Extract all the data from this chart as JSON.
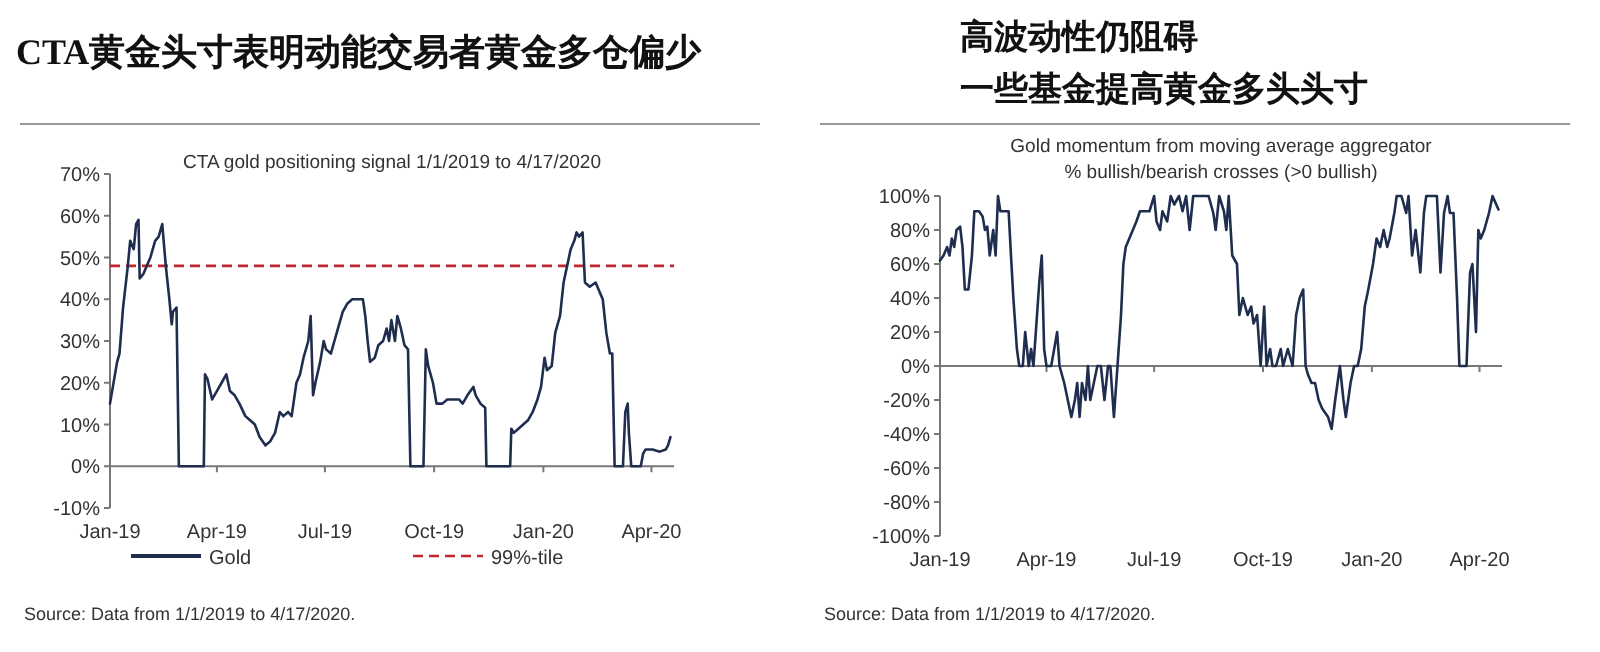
{
  "chart_data": [
    {
      "type": "line",
      "title": "CTA黄金头寸表明动能交易者黄金多仓偏少",
      "subtitle": "CTA gold positioning signal 1/1/2019 to 4/17/2020",
      "legend": "bottom",
      "line_style": "solid",
      "xlim": [
        "2019-01-01",
        "2020-04-20"
      ],
      "ylim": [
        -10,
        70
      ],
      "xticks": [
        {
          "value": "2019-01-01",
          "label": "Jan-19"
        },
        {
          "value": "2019-04-01",
          "label": "Apr-19"
        },
        {
          "value": "2019-07-01",
          "label": "Jul-19"
        },
        {
          "value": "2019-10-01",
          "label": "Oct-19"
        },
        {
          "value": "2020-01-01",
          "label": "Jan-20"
        },
        {
          "value": "2020-04-01",
          "label": "Apr-20"
        }
      ],
      "yticks": [
        {
          "value": -10,
          "label": "-10%"
        },
        {
          "value": 0,
          "label": "0%"
        },
        {
          "value": 10,
          "label": "10%"
        },
        {
          "value": 20,
          "label": "20%"
        },
        {
          "value": 30,
          "label": "30%"
        },
        {
          "value": 40,
          "label": "40%"
        },
        {
          "value": 50,
          "label": "50%"
        },
        {
          "value": 60,
          "label": "60%"
        },
        {
          "value": 70,
          "label": "70%"
        }
      ],
      "series": [
        {
          "name": "Gold",
          "color": "#1f2d4f",
          "x": [
            "2019-01-01",
            "2019-01-07",
            "2019-01-09",
            "2019-01-12",
            "2019-01-16",
            "2019-01-18",
            "2019-01-21",
            "2019-01-23",
            "2019-01-25",
            "2019-01-26",
            "2019-01-29",
            "2019-02-01",
            "2019-02-04",
            "2019-02-08",
            "2019-02-11",
            "2019-02-14",
            "2019-02-17",
            "2019-02-20",
            "2019-02-22",
            "2019-02-23",
            "2019-02-26",
            "2019-02-28",
            "2019-03-21",
            "2019-03-22",
            "2019-03-24",
            "2019-03-28",
            "2019-04-01",
            "2019-04-05",
            "2019-04-09",
            "2019-04-12",
            "2019-04-16",
            "2019-04-20",
            "2019-04-25",
            "2019-04-29",
            "2019-05-03",
            "2019-05-07",
            "2019-05-12",
            "2019-05-16",
            "2019-05-20",
            "2019-05-24",
            "2019-05-27",
            "2019-05-31",
            "2019-06-03",
            "2019-06-07",
            "2019-06-10",
            "2019-06-13",
            "2019-06-17",
            "2019-06-19",
            "2019-06-21",
            "2019-06-23",
            "2019-06-27",
            "2019-06-30",
            "2019-07-02",
            "2019-07-06",
            "2019-07-09",
            "2019-07-12",
            "2019-07-16",
            "2019-07-20",
            "2019-07-24",
            "2019-08-02",
            "2019-08-04",
            "2019-08-06",
            "2019-08-08",
            "2019-08-12",
            "2019-08-15",
            "2019-08-19",
            "2019-08-22",
            "2019-08-24",
            "2019-08-26",
            "2019-08-29",
            "2019-08-31",
            "2019-09-03",
            "2019-09-06",
            "2019-09-09",
            "2019-09-11",
            "2019-09-22",
            "2019-09-24",
            "2019-09-26",
            "2019-09-30",
            "2019-10-03",
            "2019-10-08",
            "2019-10-12",
            "2019-10-22",
            "2019-10-25",
            "2019-10-29",
            "2019-11-03",
            "2019-11-05",
            "2019-11-09",
            "2019-11-13",
            "2019-11-14",
            "2019-12-04",
            "2019-12-05",
            "2019-12-07",
            "2019-12-11",
            "2019-12-15",
            "2019-12-19",
            "2019-12-23",
            "2019-12-27",
            "2019-12-30",
            "2020-01-02",
            "2020-01-04",
            "2020-01-08",
            "2020-01-11",
            "2020-01-15",
            "2020-01-18",
            "2020-01-21",
            "2020-01-24",
            "2020-01-27",
            "2020-01-29",
            "2020-01-31",
            "2020-02-03",
            "2020-02-05",
            "2020-02-09",
            "2020-02-14",
            "2020-02-17",
            "2020-02-20",
            "2020-02-23",
            "2020-02-26",
            "2020-02-28",
            "2020-03-01",
            "2020-03-08",
            "2020-03-10",
            "2020-03-12",
            "2020-03-13",
            "2020-03-15",
            "2020-03-23",
            "2020-03-25",
            "2020-03-27",
            "2020-04-02",
            "2020-04-08",
            "2020-04-13",
            "2020-04-15",
            "2020-04-17"
          ],
          "values": [
            15,
            25,
            27,
            38,
            48,
            54,
            52,
            58,
            59,
            45,
            46,
            48,
            50,
            54,
            55,
            58,
            48,
            40,
            34,
            37,
            38,
            0,
            0,
            22,
            21,
            16,
            18,
            20,
            22,
            18,
            17,
            15,
            12,
            11,
            10,
            7,
            5,
            6,
            8,
            13,
            12,
            13,
            12,
            20,
            22,
            26,
            30,
            36,
            17,
            20,
            25,
            30,
            28,
            27,
            30,
            33,
            37,
            39,
            40,
            40,
            36,
            30,
            25,
            26,
            29,
            30,
            33,
            30,
            35,
            30,
            36,
            33,
            29,
            28,
            0,
            0,
            28,
            24,
            20,
            15,
            15,
            16,
            16,
            15,
            17,
            19,
            17,
            15,
            14,
            0,
            0,
            9,
            8,
            9,
            10,
            11,
            13,
            16,
            19,
            26,
            23,
            24,
            32,
            36,
            44,
            48,
            52,
            54,
            56,
            55,
            56,
            44,
            43,
            44,
            42,
            40,
            32,
            27,
            27,
            0,
            0,
            13,
            15,
            8,
            0,
            0,
            3,
            4,
            4,
            3.5,
            4,
            5,
            7
          ]
        }
      ],
      "ref_lines": [
        {
          "axis": "y",
          "value": 48,
          "label": "99%-tile",
          "color": "#c0282d",
          "line_style": "dashed"
        }
      ],
      "annotations": [
        "Source: Data from 1/1/2019 to 4/17/2020."
      ]
    },
    {
      "type": "line",
      "title": "高波动性仍阻碍",
      "subtitle": "一些基金提高黄金多头头寸",
      "line_style": "solid",
      "xlim": [
        "2019-01-01",
        "2020-04-20"
      ],
      "ylim": [
        -100,
        100
      ],
      "xticks": [
        {
          "value": "2019-01-01",
          "label": "Jan-19"
        },
        {
          "value": "2019-04-01",
          "label": "Apr-19"
        },
        {
          "value": "2019-07-01",
          "label": "Jul-19"
        },
        {
          "value": "2019-10-01",
          "label": "Oct-19"
        },
        {
          "value": "2020-01-01",
          "label": "Jan-20"
        },
        {
          "value": "2020-04-01",
          "label": "Apr-20"
        }
      ],
      "yticks": [
        {
          "value": -100,
          "label": "-100%"
        },
        {
          "value": -80,
          "label": "-80%"
        },
        {
          "value": -60,
          "label": "-60%"
        },
        {
          "value": -40,
          "label": "-40%"
        },
        {
          "value": -20,
          "label": "-20%"
        },
        {
          "value": 0,
          "label": "0%"
        },
        {
          "value": 20,
          "label": "20%"
        },
        {
          "value": 40,
          "label": "40%"
        },
        {
          "value": 60,
          "label": "60%"
        },
        {
          "value": 80,
          "label": "80%"
        },
        {
          "value": 100,
          "label": "100%"
        }
      ],
      "series": [
        {
          "color": "#1f2d4f",
          "x": [
            "2019-01-01",
            "2019-01-04",
            "2019-01-07",
            "2019-01-09",
            "2019-01-11",
            "2019-01-13",
            "2019-01-15",
            "2019-01-18",
            "2019-01-20",
            "2019-01-22",
            "2019-01-25",
            "2019-01-28",
            "2019-01-30",
            "2019-02-03",
            "2019-02-06",
            "2019-02-08",
            "2019-02-10",
            "2019-02-12",
            "2019-02-15",
            "2019-02-17",
            "2019-02-19",
            "2019-02-21",
            "2019-02-28",
            "2019-03-02",
            "2019-03-04",
            "2019-03-07",
            "2019-03-09",
            "2019-03-12",
            "2019-03-14",
            "2019-03-17",
            "2019-03-19",
            "2019-03-21",
            "2019-03-23",
            "2019-03-26",
            "2019-03-28",
            "2019-03-30",
            "2019-04-01",
            "2019-04-05",
            "2019-04-10",
            "2019-04-12",
            "2019-04-16",
            "2019-04-19",
            "2019-04-22",
            "2019-04-25",
            "2019-04-27",
            "2019-04-29",
            "2019-05-01",
            "2019-05-04",
            "2019-05-06",
            "2019-05-08",
            "2019-05-11",
            "2019-05-14",
            "2019-05-17",
            "2019-05-20",
            "2019-05-23",
            "2019-05-25",
            "2019-05-28",
            "2019-05-31",
            "2019-06-03",
            "2019-06-05",
            "2019-06-07",
            "2019-06-10",
            "2019-06-13",
            "2019-06-16",
            "2019-06-19",
            "2019-06-27",
            "2019-07-01",
            "2019-07-03",
            "2019-07-06",
            "2019-07-08",
            "2019-07-12",
            "2019-07-15",
            "2019-07-18",
            "2019-07-22",
            "2019-07-25",
            "2019-07-28",
            "2019-07-31",
            "2019-08-03",
            "2019-08-16",
            "2019-08-20",
            "2019-08-22",
            "2019-08-25",
            "2019-08-29",
            "2019-08-31",
            "2019-09-02",
            "2019-09-05",
            "2019-09-09",
            "2019-09-11",
            "2019-09-14",
            "2019-09-18",
            "2019-09-21",
            "2019-09-23",
            "2019-09-26",
            "2019-09-29",
            "2019-10-02",
            "2019-10-04",
            "2019-10-07",
            "2019-10-09",
            "2019-10-12",
            "2019-10-16",
            "2019-10-18",
            "2019-10-22",
            "2019-10-26",
            "2019-10-29",
            "2019-11-01",
            "2019-11-04",
            "2019-11-06",
            "2019-11-08",
            "2019-11-11",
            "2019-11-14",
            "2019-11-17",
            "2019-11-20",
            "2019-11-25",
            "2019-11-28",
            "2019-12-01",
            "2019-12-05",
            "2019-12-08",
            "2019-12-10",
            "2019-12-14",
            "2019-12-17",
            "2019-12-20",
            "2019-12-23",
            "2019-12-26",
            "2019-12-29",
            "2020-01-02",
            "2020-01-05",
            "2020-01-08",
            "2020-01-11",
            "2020-01-14",
            "2020-01-16",
            "2020-01-20",
            "2020-01-22",
            "2020-01-26",
            "2020-01-30",
            "2020-02-01",
            "2020-02-04",
            "2020-02-07",
            "2020-02-11",
            "2020-02-14",
            "2020-02-16",
            "2020-02-25",
            "2020-02-28",
            "2020-03-02",
            "2020-03-05",
            "2020-03-07",
            "2020-03-10",
            "2020-03-13",
            "2020-03-15",
            "2020-03-21",
            "2020-03-24",
            "2020-03-26",
            "2020-03-29",
            "2020-03-31",
            "2020-04-02",
            "2020-04-05",
            "2020-04-09",
            "2020-04-12",
            "2020-04-17"
          ],
          "values": [
            62,
            65,
            70,
            65,
            75,
            70,
            80,
            82,
            70,
            45,
            45,
            65,
            91,
            91,
            88,
            80,
            82,
            65,
            80,
            65,
            100,
            91,
            91,
            65,
            40,
            10,
            0,
            0,
            20,
            0,
            10,
            0,
            20,
            50,
            65,
            10,
            0,
            0,
            20,
            0,
            -10,
            -20,
            -30,
            -20,
            -10,
            -30,
            -10,
            -20,
            0,
            -20,
            -10,
            0,
            0,
            -20,
            0,
            0,
            -30,
            0,
            30,
            60,
            70,
            75,
            80,
            85,
            91,
            91,
            100,
            85,
            80,
            91,
            85,
            100,
            95,
            100,
            91,
            100,
            80,
            100,
            100,
            90,
            80,
            100,
            91,
            80,
            100,
            65,
            60,
            30,
            40,
            30,
            35,
            25,
            30,
            0,
            35,
            0,
            10,
            0,
            0,
            10,
            0,
            10,
            0,
            30,
            40,
            45,
            0,
            -5,
            -10,
            -10,
            -20,
            -25,
            -30,
            -37,
            -20,
            0,
            -20,
            -30,
            -10,
            0,
            0,
            10,
            35,
            45,
            60,
            75,
            70,
            80,
            70,
            75,
            90,
            100,
            100,
            90,
            100,
            65,
            80,
            55,
            90,
            100,
            100,
            55,
            90,
            100,
            90,
            90,
            40,
            0,
            0,
            55,
            60,
            20,
            80,
            75,
            80,
            90,
            100,
            92
          ]
        }
      ],
      "annotations": [
        "Gold momentum from moving average aggregator\n% bullish/bearish crosses (>0 bullish)",
        "Source: Data from 1/1/2019 to 4/17/2020."
      ]
    }
  ]
}
